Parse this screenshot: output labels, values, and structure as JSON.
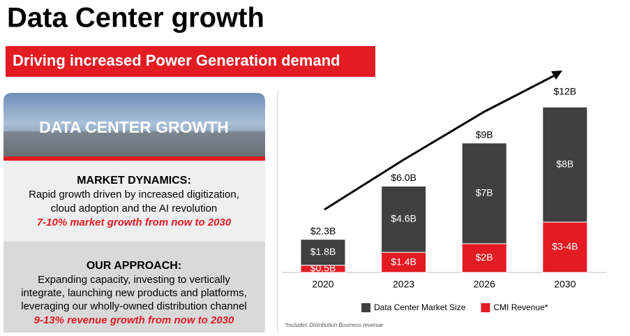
{
  "header": {
    "title": "Data Center growth",
    "subtitle": "Driving increased Power Generation demand"
  },
  "panel": {
    "image_caption": "DATA CENTER GROWTH",
    "market": {
      "heading": "MARKET DYNAMICS:",
      "lines": [
        "Rapid growth driven by increased digitization,",
        "cloud adoption and the AI revolution"
      ],
      "highlight": "7-10% market growth from now to 2030"
    },
    "approach": {
      "heading": "OUR APPROACH:",
      "lines": [
        "Expanding capacity, investing to vertically",
        "integrate, launching new products and platforms,",
        "leveraging our wholly-owned distribution channel"
      ],
      "highlight": "9-13% revenue growth from now to 2030"
    }
  },
  "chart_data": {
    "type": "stacked-bar",
    "categories": [
      "2020",
      "2023",
      "2026",
      "2030"
    ],
    "series": [
      {
        "name": "Data Center Market Size",
        "color": "#404040",
        "values": [
          1.8,
          4.6,
          7,
          8
        ],
        "value_labels": [
          "$1.8B",
          "$4.6B",
          "$7B",
          "$8B"
        ]
      },
      {
        "name": "CMI Revenue*",
        "color": "#e31b23",
        "values": [
          0.5,
          1.4,
          2,
          3.5
        ],
        "value_labels": [
          "$0.5B",
          "$1.4B",
          "$2B",
          "$3-4B"
        ]
      }
    ],
    "totals": {
      "values": [
        2.3,
        6.0,
        9,
        12
      ],
      "labels": [
        "$2.3B",
        "$6.0B",
        "$9B",
        "$12B"
      ]
    },
    "footnote": "*Includes Distribution Business revenue"
  }
}
